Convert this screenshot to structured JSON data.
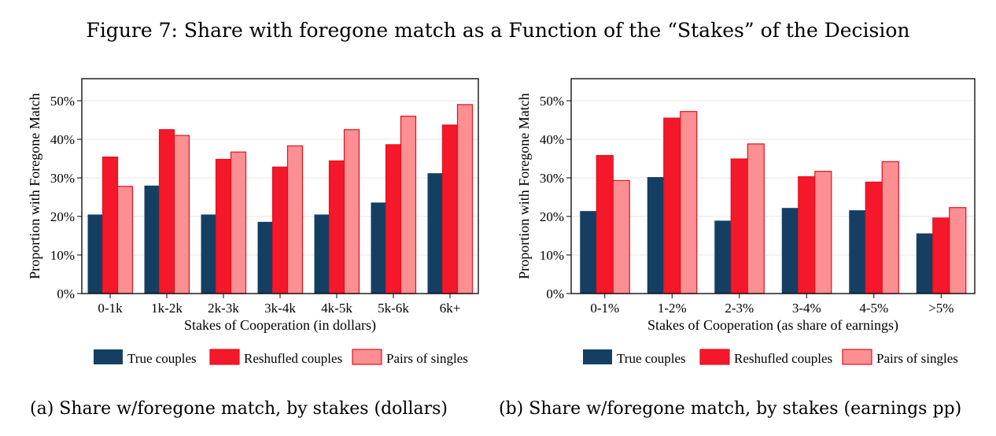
{
  "figure_title": "Figure 7: Share with foregone match as a Function of the “Stakes” of the Decision",
  "colors": {
    "true_couples": "#143f63",
    "reshuffled_couples": "#f5182a",
    "pairs_of_singles": "#fb8f92",
    "bar_border": "#e0121f",
    "grid": "#e6e6e6"
  },
  "chart_data": [
    {
      "type": "bar",
      "caption": "(a) Share w/foregone match, by stakes (dollars)",
      "xlabel": "Stakes of Cooperation (in dollars)",
      "ylabel": "Proportion with Foregone Match",
      "ylim": [
        0,
        0.5
      ],
      "yticks": [
        "0%",
        "10%",
        "20%",
        "30%",
        "40%",
        "50%"
      ],
      "grid": true,
      "legend_position": "bottom",
      "categories": [
        "0-1k",
        "1k-2k",
        "2k-3k",
        "3k-4k",
        "4k-5k",
        "5k-6k",
        "6k+"
      ],
      "series": [
        {
          "name": "True couples",
          "values": [
            0.205,
            0.28,
            0.205,
            0.186,
            0.205,
            0.236,
            0.312
          ]
        },
        {
          "name": "Reshufled couples",
          "values": [
            0.354,
            0.425,
            0.348,
            0.328,
            0.344,
            0.386,
            0.437
          ]
        },
        {
          "name": "Pairs of singles",
          "values": [
            0.278,
            0.41,
            0.367,
            0.383,
            0.425,
            0.46,
            0.49
          ]
        }
      ]
    },
    {
      "type": "bar",
      "caption": "(b) Share w/foregone match, by stakes (earnings pp)",
      "xlabel": "Stakes of Cooperation (as share of earnings)",
      "ylabel": "Proportion with Foregone Match",
      "ylim": [
        0,
        0.5
      ],
      "yticks": [
        "0%",
        "10%",
        "20%",
        "30%",
        "40%",
        "50%"
      ],
      "grid": true,
      "legend_position": "bottom",
      "categories": [
        "0-1%",
        "1-2%",
        "2-3%",
        "3-4%",
        "4-5%",
        ">5%"
      ],
      "series": [
        {
          "name": "True couples",
          "values": [
            0.214,
            0.302,
            0.189,
            0.222,
            0.216,
            0.156
          ]
        },
        {
          "name": "Reshufled couples",
          "values": [
            0.358,
            0.455,
            0.349,
            0.303,
            0.289,
            0.196
          ]
        },
        {
          "name": "Pairs of singles",
          "values": [
            0.293,
            0.472,
            0.388,
            0.317,
            0.342,
            0.223
          ]
        }
      ]
    }
  ]
}
